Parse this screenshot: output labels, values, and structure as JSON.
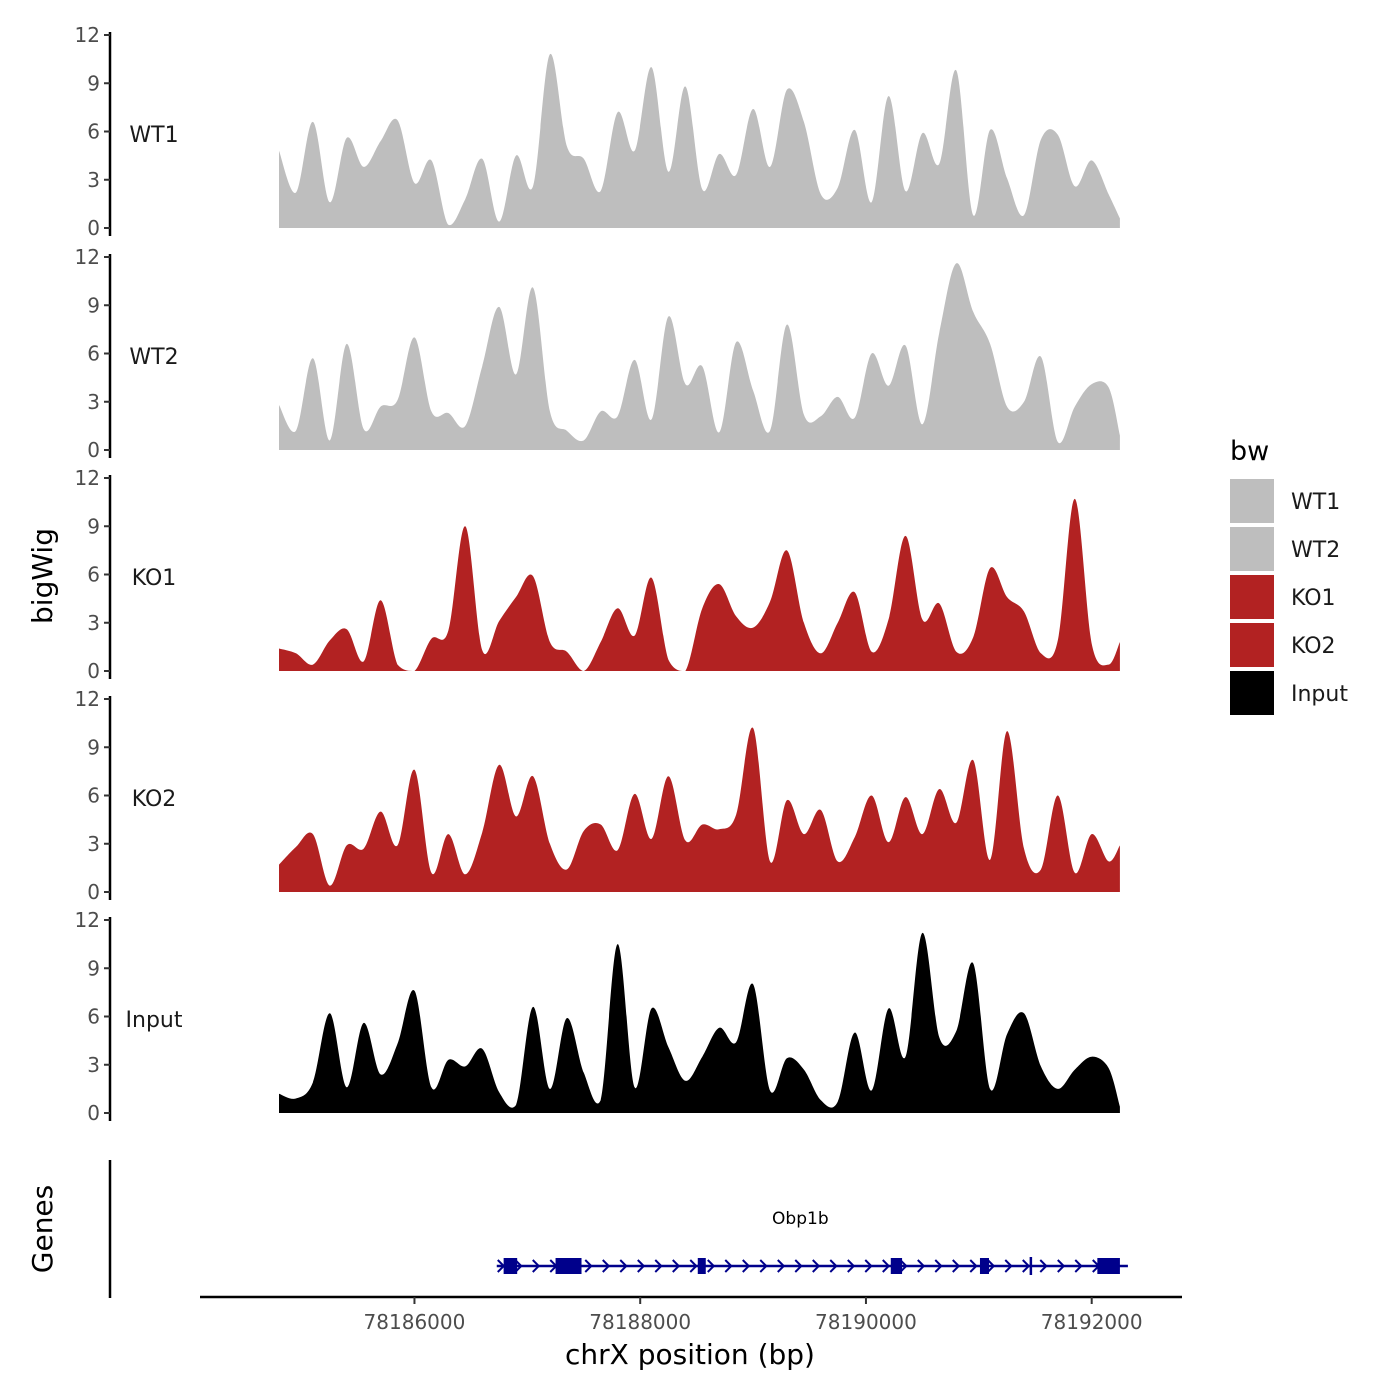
{
  "chart_data": {
    "type": "area",
    "description_note": "Genome browser: bigWig coverage tracks plus gene annotation",
    "y_axis_title": "bigWig",
    "genes_axis_title": "Genes",
    "x_axis_title": "chrX position (bp)",
    "x_range": [
      78184800,
      78192250
    ],
    "x_axis_limits": [
      78184100,
      78192800
    ],
    "x_ticks": [
      78186000,
      78188000,
      78190000,
      78192000
    ],
    "x_tick_labels": [
      "78186000",
      "78188000",
      "78190000",
      "78192000"
    ],
    "y_range": [
      0,
      12
    ],
    "y_ticks": [
      0,
      3,
      6,
      9,
      12
    ],
    "y_tick_labels": [
      "0",
      "3",
      "6",
      "9",
      "12"
    ],
    "legend": {
      "title": "bw",
      "entries": [
        {
          "label": "WT1",
          "color": "#bebebe"
        },
        {
          "label": "WT2",
          "color": "#bebebe"
        },
        {
          "label": "KO1",
          "color": "#b22222"
        },
        {
          "label": "KO2",
          "color": "#b22222"
        },
        {
          "label": "Input",
          "color": "#000000"
        }
      ]
    },
    "tracks": [
      {
        "name": "WT1",
        "color": "#bebebe",
        "x": [
          78184800,
          78184950,
          78185100,
          78185250,
          78185400,
          78185550,
          78185700,
          78185850,
          78186000,
          78186150,
          78186300,
          78186450,
          78186600,
          78186750,
          78186900,
          78187050,
          78187200,
          78187350,
          78187500,
          78187650,
          78187800,
          78187950,
          78188100,
          78188250,
          78188400,
          78188550,
          78188700,
          78188850,
          78189000,
          78189150,
          78189300,
          78189450,
          78189600,
          78189750,
          78189900,
          78190050,
          78190200,
          78190350,
          78190500,
          78190650,
          78190800,
          78190950,
          78191100,
          78191250,
          78191400,
          78191550,
          78191700,
          78191850,
          78192000,
          78192150,
          78192250
        ],
        "y": [
          4.8,
          2.2,
          6.6,
          1.6,
          5.6,
          3.8,
          5.4,
          6.7,
          2.8,
          4.2,
          0.2,
          1.8,
          4.3,
          0.4,
          4.5,
          2.6,
          10.8,
          5.1,
          4.3,
          2.3,
          7.2,
          4.8,
          10.0,
          3.5,
          8.8,
          2.4,
          4.6,
          3.3,
          7.4,
          3.8,
          8.6,
          6.6,
          2.1,
          2.5,
          6.1,
          1.6,
          8.2,
          2.3,
          5.9,
          4.0,
          9.8,
          0.8,
          6.1,
          3.1,
          0.8,
          5.5,
          5.8,
          2.6,
          4.2,
          2.1,
          0.6
        ]
      },
      {
        "name": "WT2",
        "color": "#bebebe",
        "x": [
          78184800,
          78184950,
          78185100,
          78185250,
          78185400,
          78185550,
          78185700,
          78185850,
          78186000,
          78186150,
          78186300,
          78186450,
          78186600,
          78186750,
          78186900,
          78187050,
          78187200,
          78187350,
          78187500,
          78187650,
          78187800,
          78187950,
          78188100,
          78188250,
          78188400,
          78188550,
          78188700,
          78188850,
          78189000,
          78189150,
          78189300,
          78189450,
          78189600,
          78189750,
          78189900,
          78190050,
          78190200,
          78190350,
          78190500,
          78190650,
          78190800,
          78190950,
          78191100,
          78191250,
          78191400,
          78191550,
          78191700,
          78191850,
          78192000,
          78192150,
          78192250
        ],
        "y": [
          2.8,
          1.2,
          5.7,
          0.6,
          6.6,
          1.3,
          2.7,
          3.1,
          7.0,
          2.4,
          2.3,
          1.5,
          5.2,
          8.9,
          4.7,
          10.1,
          2.4,
          1.2,
          0.6,
          2.4,
          2.1,
          5.6,
          1.9,
          8.3,
          4.1,
          5.2,
          1.1,
          6.7,
          3.7,
          1.2,
          7.8,
          2.2,
          2.1,
          3.3,
          2.0,
          6.0,
          4.0,
          6.5,
          1.6,
          7.3,
          11.6,
          8.6,
          6.6,
          2.7,
          3.0,
          5.8,
          0.5,
          2.7,
          4.1,
          3.9,
          0.9
        ]
      },
      {
        "name": "KO1",
        "color": "#b22222",
        "x": [
          78184800,
          78184950,
          78185100,
          78185250,
          78185400,
          78185550,
          78185700,
          78185850,
          78186000,
          78186150,
          78186300,
          78186450,
          78186600,
          78186750,
          78186900,
          78187050,
          78187200,
          78187350,
          78187500,
          78187650,
          78187800,
          78187950,
          78188100,
          78188250,
          78188400,
          78188550,
          78188700,
          78188850,
          78189000,
          78189150,
          78189300,
          78189450,
          78189600,
          78189750,
          78189900,
          78190050,
          78190200,
          78190350,
          78190500,
          78190650,
          78190800,
          78190950,
          78191100,
          78191250,
          78191400,
          78191550,
          78191700,
          78191850,
          78192000,
          78192150,
          78192250
        ],
        "y": [
          1.4,
          1.1,
          0.4,
          1.9,
          2.6,
          0.6,
          4.4,
          0.4,
          0.0,
          2.0,
          2.5,
          9.0,
          1.3,
          3.1,
          4.6,
          5.9,
          1.8,
          1.2,
          0.0,
          1.8,
          3.9,
          2.2,
          5.8,
          0.7,
          0.0,
          3.9,
          5.4,
          3.4,
          2.7,
          4.3,
          7.5,
          3.0,
          1.1,
          3.0,
          4.9,
          1.2,
          3.2,
          8.4,
          3.2,
          4.2,
          1.2,
          2.1,
          6.4,
          4.6,
          3.7,
          1.1,
          1.9,
          10.7,
          1.7,
          0.4,
          1.8
        ]
      },
      {
        "name": "KO2",
        "color": "#b22222",
        "x": [
          78184800,
          78184950,
          78185100,
          78185250,
          78185400,
          78185550,
          78185700,
          78185850,
          78186000,
          78186150,
          78186300,
          78186450,
          78186600,
          78186750,
          78186900,
          78187050,
          78187200,
          78187350,
          78187500,
          78187650,
          78187800,
          78187950,
          78188100,
          78188250,
          78188400,
          78188550,
          78188700,
          78188850,
          78189000,
          78189150,
          78189300,
          78189450,
          78189600,
          78189750,
          78189900,
          78190050,
          78190200,
          78190350,
          78190500,
          78190650,
          78190800,
          78190950,
          78191100,
          78191250,
          78191400,
          78191550,
          78191700,
          78191850,
          78192000,
          78192150,
          78192250
        ],
        "y": [
          1.7,
          2.8,
          3.6,
          0.4,
          2.9,
          2.7,
          5.0,
          2.9,
          7.6,
          1.2,
          3.6,
          1.1,
          3.7,
          7.9,
          4.7,
          7.2,
          3.0,
          1.4,
          3.8,
          4.2,
          2.6,
          6.1,
          3.3,
          7.2,
          3.2,
          4.2,
          3.9,
          4.8,
          10.2,
          1.9,
          5.7,
          3.6,
          5.1,
          1.9,
          3.4,
          6.0,
          3.1,
          5.9,
          3.6,
          6.4,
          4.3,
          8.2,
          2.0,
          10.0,
          2.7,
          1.4,
          6.0,
          1.2,
          3.6,
          1.9,
          2.9
        ]
      },
      {
        "name": "Input",
        "color": "#000000",
        "x": [
          78184800,
          78184950,
          78185100,
          78185250,
          78185400,
          78185550,
          78185700,
          78185850,
          78186000,
          78186150,
          78186300,
          78186450,
          78186600,
          78186750,
          78186900,
          78187050,
          78187200,
          78187350,
          78187500,
          78187650,
          78187800,
          78187950,
          78188100,
          78188250,
          78188400,
          78188550,
          78188700,
          78188850,
          78189000,
          78189150,
          78189300,
          78189450,
          78189600,
          78189750,
          78189900,
          78190050,
          78190200,
          78190350,
          78190500,
          78190650,
          78190800,
          78190950,
          78191100,
          78191250,
          78191400,
          78191550,
          78191700,
          78191850,
          78192000,
          78192150,
          78192250
        ],
        "y": [
          1.2,
          0.9,
          1.9,
          6.2,
          1.6,
          5.6,
          2.4,
          4.3,
          7.6,
          1.6,
          3.3,
          2.9,
          4.0,
          1.3,
          0.5,
          6.6,
          1.5,
          5.9,
          2.5,
          0.8,
          10.5,
          1.6,
          6.5,
          4.1,
          2.0,
          3.5,
          5.3,
          4.4,
          8.0,
          1.4,
          3.4,
          2.7,
          0.8,
          0.7,
          5.0,
          1.4,
          6.5,
          3.5,
          11.2,
          4.7,
          5.1,
          9.3,
          1.5,
          4.9,
          6.2,
          2.9,
          1.5,
          2.7,
          3.5,
          2.8,
          0.4
        ]
      }
    ],
    "gene": {
      "name": "Obp1b",
      "strand": "+",
      "start": 78186800,
      "end": 78192250,
      "exons": [
        {
          "start": 78186790,
          "end": 78186910,
          "size": "large"
        },
        {
          "start": 78187250,
          "end": 78187480,
          "size": "large"
        },
        {
          "start": 78188510,
          "end": 78188580,
          "size": "small"
        },
        {
          "start": 78190220,
          "end": 78190320,
          "size": "large"
        },
        {
          "start": 78191010,
          "end": 78191090,
          "size": "large"
        },
        {
          "start": 78191450,
          "end": 78191470,
          "size": "tick"
        },
        {
          "start": 78192050,
          "end": 78192250,
          "size": "large"
        }
      ],
      "color": "#00008b"
    }
  }
}
